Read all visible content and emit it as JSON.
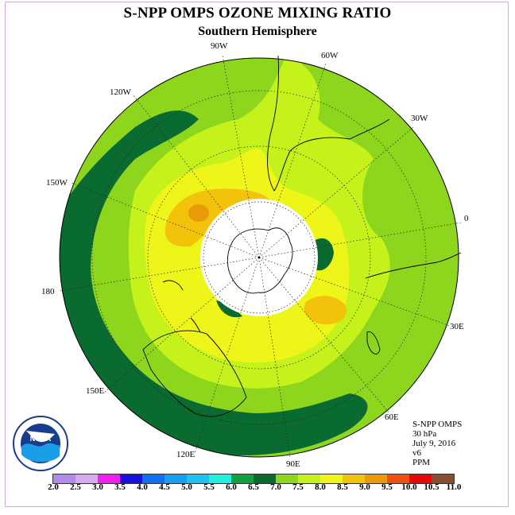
{
  "header": {
    "title": "S-NPP OMPS OZONE MIXING RATIO",
    "subtitle": "Southern Hemisphere"
  },
  "map": {
    "projection": "south polar stereographic",
    "longitude_labels": [
      "90W",
      "60W",
      "30W",
      "0",
      "30E",
      "60E",
      "90E",
      "120E",
      "150E",
      "180",
      "150W",
      "120W"
    ],
    "colors": {
      "lt_7_0": "#0a6b30",
      "c_7_0_7_5": "#8ed61e",
      "c_7_5_8_0": "#c4f21a",
      "c_8_0_8_5": "#eef518",
      "c_8_5_9_0": "#f2c30a",
      "c_9_0_9_5": "#e89a08"
    }
  },
  "info": {
    "line1": "S-NPP OMPS",
    "line2": "30 hPa",
    "line3": "July 9, 2016",
    "line4": "v6",
    "line5": "PPM"
  },
  "logo": {
    "label": "NOAA"
  },
  "colorbar": {
    "ticks": [
      "2.0",
      "2.5",
      "3.0",
      "3.5",
      "4.0",
      "4.5",
      "5.0",
      "5.5",
      "6.0",
      "6.5",
      "7.0",
      "7.5",
      "8.0",
      "8.5",
      "9.0",
      "9.5",
      "10.0",
      "10.5",
      "11.0"
    ],
    "colors": [
      "#b08ce8",
      "#d8a8f0",
      "#f020f0",
      "#1a10e0",
      "#1070f0",
      "#18a0f0",
      "#20c0f0",
      "#20f0e0",
      "#10a040",
      "#0a6b30",
      "#8ed61e",
      "#c4f21a",
      "#eef518",
      "#f2c30a",
      "#e89a08",
      "#f05010",
      "#e80808",
      "#885030"
    ]
  }
}
